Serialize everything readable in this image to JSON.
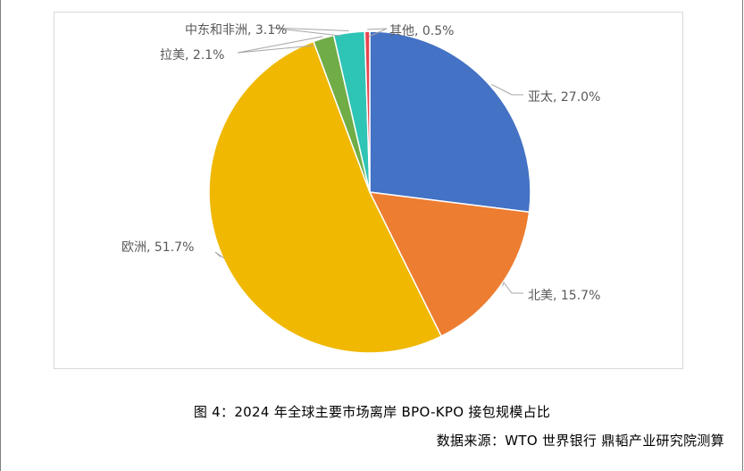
{
  "chart_data": {
    "type": "pie",
    "title": "",
    "slices": [
      {
        "label": "亚太",
        "value": 27.0,
        "display": "亚太, 27.0%",
        "color": "#4472c4"
      },
      {
        "label": "北美",
        "value": 15.7,
        "display": "北美, 15.7%",
        "color": "#ed7d31"
      },
      {
        "label": "欧洲",
        "value": 51.7,
        "display": "欧洲, 51.7%",
        "color": "#f0b800"
      },
      {
        "label": "拉美",
        "value": 2.1,
        "display": "拉美, 2.1%",
        "color": "#70ad47"
      },
      {
        "label": "中东和非洲",
        "value": 3.1,
        "display": "中东和非洲, 3.1%",
        "color": "#2ec4b6"
      },
      {
        "label": "其他",
        "value": 0.5,
        "display": "其他, 0.5%",
        "color": "#e8454f"
      }
    ],
    "unit": "%",
    "legend": "none",
    "data_labels": "outside-with-leader-lines"
  },
  "caption": "图 4：2024 年全球主要市场离岸 BPO-KPO 接包规模占比",
  "source": "数据来源：WTO 世界银行 鼎韬产业研究院测算"
}
